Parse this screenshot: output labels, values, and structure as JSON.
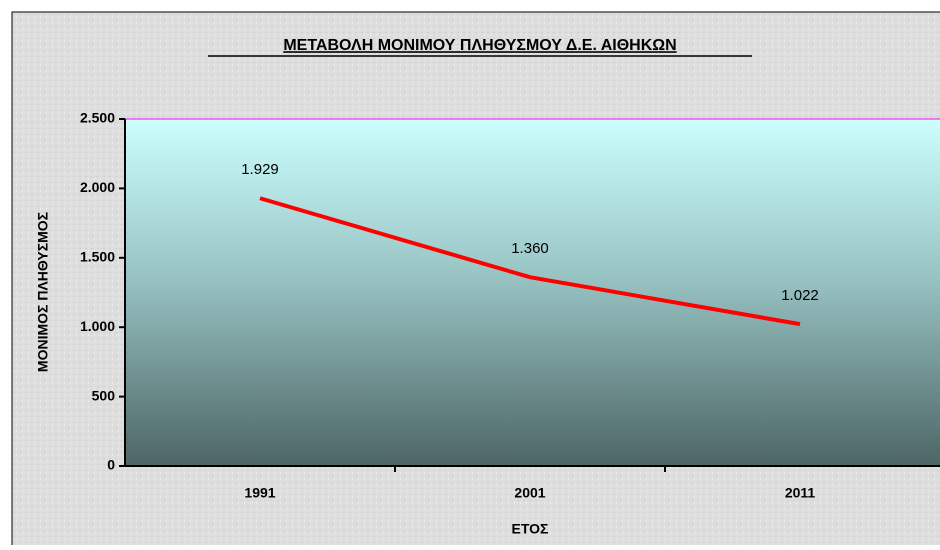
{
  "chart_data": {
    "type": "line",
    "title": "ΜΕΤΑΒΟΛΗ ΜΟΝΙΜΟΥ ΠΛΗΘΥΣΜΟΥ Δ.Ε. ΑΙΘΗΚΩΝ",
    "x_label": "ΕΤΟΣ",
    "y_label": "ΜΟΝΙΜΟΣ ΠΛΗΘΥΣΜΟΣ",
    "categories": [
      "1991",
      "2001",
      "2011"
    ],
    "values": [
      1929,
      1360,
      1022
    ],
    "value_labels": [
      "1.929",
      "1.360",
      "1.022"
    ],
    "color": "#ff0000",
    "ylim": [
      0,
      2500
    ],
    "yticks": [
      0,
      500,
      {
        "value": 1000,
        "label": "1.000"
      },
      {
        "value": 1500,
        "label": "1.500"
      },
      {
        "value": 2000,
        "label": "2.000"
      },
      {
        "value": 2500,
        "label": "2.500"
      }
    ],
    "grid": false
  }
}
